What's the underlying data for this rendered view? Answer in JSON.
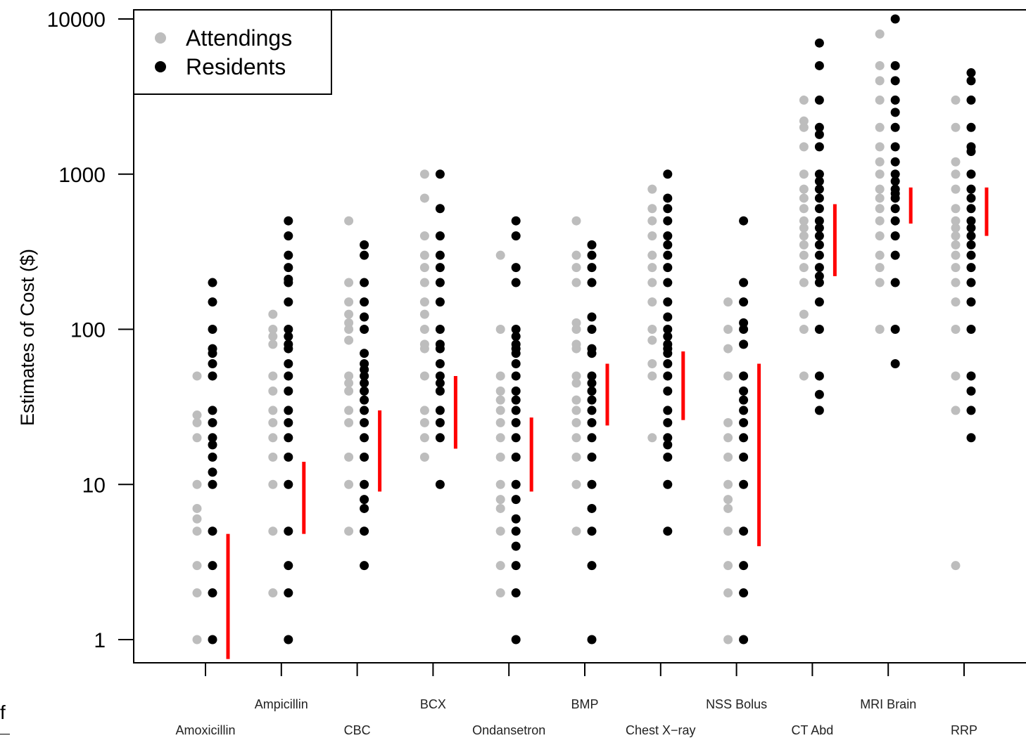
{
  "chart_data": {
    "type": "scatter",
    "ylabel": "Estimates of Cost ($)",
    "yscale": "log",
    "ylim": [
      0.8,
      10500
    ],
    "yticks": [
      "1",
      "10",
      "100",
      "1000",
      "10000"
    ],
    "legend": {
      "position": "top-left",
      "entries": [
        "Attendings",
        "Residents"
      ]
    },
    "colors": {
      "attendings": "#bdbdbd",
      "residents": "#000000",
      "range": "#ff0000"
    },
    "categories": [
      "Amoxicillin",
      "Ampicillin",
      "CBC",
      "BCX",
      "Ondansetron",
      "BMP",
      "Chest X−ray",
      "NSS Bolus",
      "CT Abd",
      "MRI Brain",
      "RRP"
    ],
    "series": [
      {
        "name": "Attendings",
        "values": [
          [
            1,
            2,
            3,
            5,
            6,
            7,
            10,
            20,
            25,
            28,
            50
          ],
          [
            2,
            5,
            10,
            15,
            20,
            25,
            30,
            40,
            50,
            80,
            90,
            100,
            125
          ],
          [
            5,
            10,
            15,
            25,
            30,
            40,
            45,
            50,
            85,
            100,
            110,
            125,
            150,
            200,
            500
          ],
          [
            15,
            20,
            25,
            30,
            50,
            75,
            80,
            100,
            125,
            150,
            200,
            250,
            300,
            400,
            700,
            1000
          ],
          [
            2,
            3,
            5,
            7,
            8,
            10,
            15,
            20,
            25,
            30,
            35,
            40,
            50,
            100,
            300
          ],
          [
            5,
            10,
            15,
            20,
            25,
            30,
            35,
            45,
            50,
            75,
            80,
            100,
            110,
            200,
            250,
            300,
            500
          ],
          [
            20,
            50,
            60,
            85,
            100,
            150,
            200,
            250,
            300,
            400,
            500,
            600,
            800
          ],
          [
            1,
            2,
            3,
            5,
            7,
            8,
            10,
            15,
            20,
            25,
            50,
            75,
            100,
            150
          ],
          [
            50,
            100,
            125,
            200,
            250,
            300,
            350,
            400,
            450,
            500,
            600,
            700,
            800,
            1000,
            1500,
            2000,
            2200,
            3000
          ],
          [
            100,
            200,
            250,
            300,
            400,
            500,
            600,
            700,
            800,
            1000,
            1200,
            1500,
            2000,
            3000,
            4000,
            5000,
            8000
          ],
          [
            3,
            30,
            50,
            100,
            150,
            200,
            250,
            300,
            350,
            400,
            450,
            500,
            600,
            800,
            1000,
            1200,
            2000,
            3000
          ]
        ]
      },
      {
        "name": "Residents",
        "values": [
          [
            1,
            2,
            3,
            5,
            10,
            12,
            15,
            18,
            20,
            25,
            30,
            50,
            60,
            70,
            75,
            100,
            150,
            200
          ],
          [
            1,
            2,
            3,
            5,
            10,
            15,
            20,
            25,
            30,
            40,
            50,
            60,
            75,
            80,
            90,
            100,
            150,
            200,
            210,
            250,
            300,
            400,
            500
          ],
          [
            3,
            5,
            7,
            8,
            10,
            15,
            20,
            25,
            30,
            35,
            40,
            45,
            50,
            55,
            60,
            70,
            100,
            120,
            150,
            200,
            300,
            350
          ],
          [
            10,
            20,
            25,
            30,
            40,
            45,
            50,
            60,
            75,
            80,
            100,
            150,
            200,
            250,
            300,
            400,
            600,
            1000
          ],
          [
            1,
            2,
            3,
            4,
            5,
            6,
            8,
            10,
            15,
            20,
            25,
            30,
            35,
            40,
            50,
            60,
            70,
            75,
            80,
            90,
            100,
            200,
            250,
            400,
            500
          ],
          [
            1,
            3,
            5,
            7,
            10,
            15,
            20,
            25,
            30,
            35,
            40,
            45,
            50,
            70,
            75,
            100,
            120,
            200,
            250,
            300,
            350
          ],
          [
            5,
            10,
            15,
            18,
            20,
            25,
            30,
            40,
            50,
            60,
            70,
            75,
            80,
            90,
            100,
            120,
            150,
            200,
            250,
            300,
            350,
            400,
            500,
            600,
            700,
            1000
          ],
          [
            1,
            2,
            3,
            5,
            10,
            15,
            20,
            25,
            30,
            35,
            40,
            50,
            80,
            100,
            110,
            150,
            200,
            500
          ],
          [
            30,
            38,
            50,
            100,
            150,
            200,
            220,
            250,
            300,
            350,
            400,
            450,
            500,
            600,
            700,
            800,
            900,
            1000,
            1500,
            1800,
            2000,
            3000,
            5000,
            7000
          ],
          [
            60,
            100,
            200,
            300,
            400,
            500,
            600,
            700,
            750,
            800,
            900,
            1000,
            1200,
            1500,
            2000,
            2500,
            3000,
            4000,
            5000,
            10000
          ],
          [
            20,
            30,
            40,
            50,
            100,
            150,
            200,
            250,
            300,
            350,
            400,
            450,
            500,
            600,
            700,
            800,
            1000,
            1400,
            1500,
            2000,
            3000,
            4000,
            4500
          ]
        ]
      }
    ],
    "ranges": [
      [
        0.75,
        4.8
      ],
      [
        4.8,
        14
      ],
      [
        9,
        30
      ],
      [
        17,
        50
      ],
      [
        9,
        27
      ],
      [
        24,
        60
      ],
      [
        26,
        72
      ],
      [
        4,
        60
      ],
      [
        220,
        640
      ],
      [
        480,
        820
      ],
      [
        400,
        820
      ]
    ]
  },
  "page": {
    "stray_text": "f"
  }
}
